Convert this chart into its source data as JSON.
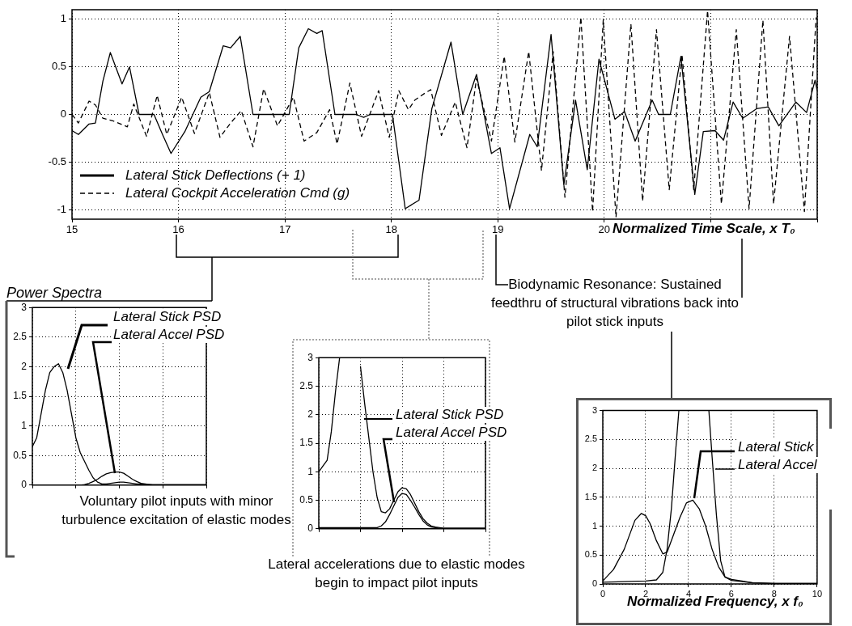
{
  "chart_data": [
    {
      "type": "line",
      "xlabel": "Normalized Time Scale, x T₀",
      "xlim": [
        15,
        22
      ],
      "xticks": [
        15,
        16,
        17,
        18,
        19,
        20,
        {
          "value": 21,
          "label": null
        },
        {
          "value": 22,
          "label": null
        }
      ],
      "ylim": [
        -1.1,
        1.1
      ],
      "yticks": [
        -1,
        -0.5,
        0,
        0.5,
        1
      ],
      "grid": true,
      "legend": "bottom left",
      "annotations": [
        "Biodynamic Resonance:  Sustained feedthru of structural vibrations back into pilot stick inputs"
      ],
      "series": [
        {
          "name": "Lateral Stick Deflections  (+ 1)",
          "color": "#000000",
          "line_style": "solid",
          "x": [
            15,
            15.06,
            15.16,
            15.22,
            15.29,
            15.36,
            15.47,
            15.54,
            15.63,
            15.77,
            15.85,
            15.93,
            16.06,
            16.21,
            16.29,
            16.42,
            16.49,
            16.58,
            16.7,
            17.04,
            17.13,
            17.22,
            17.3,
            17.35,
            17.47,
            17.67,
            17.74,
            17.8,
            18.01,
            18.13,
            18.26,
            18.38,
            18.56,
            18.67,
            18.8,
            18.94,
            19.02,
            19.11,
            19.3,
            19.37,
            19.5,
            19.62,
            19.73,
            19.84,
            19.95,
            20.1,
            20.19,
            20.29,
            20.45,
            20.51,
            20.62,
            20.72,
            20.85,
            20.93,
            21.04,
            21.12,
            21.21,
            21.3,
            21.43,
            21.54,
            21.64,
            21.8,
            21.9,
            21.98,
            22
          ],
          "values": [
            -0.17,
            -0.21,
            -0.1,
            -0.09,
            0.35,
            0.65,
            0.32,
            0.5,
            0,
            0,
            -0.21,
            -0.41,
            -0.18,
            0.18,
            0.24,
            0.72,
            0.7,
            0.82,
            0,
            0,
            0.7,
            0.9,
            0.85,
            0.88,
            0,
            0,
            -0.03,
            0,
            0,
            -0.99,
            -0.9,
            0.06,
            0.76,
            0,
            0.42,
            -0.41,
            -0.35,
            -0.99,
            -0.21,
            -0.34,
            0.84,
            -0.74,
            0.15,
            -0.58,
            0.58,
            -0.05,
            0.03,
            -0.28,
            0.15,
            0,
            0,
            0.61,
            -0.84,
            -0.18,
            -0.17,
            -0.27,
            0.13,
            -0.04,
            0.06,
            0.08,
            -0.12,
            0.13,
            0.02,
            0.36,
            0.25
          ]
        },
        {
          "name": "Lateral Cockpit Acceleration Cmd (g)",
          "color": "#000000",
          "line_style": "dashed",
          "x": [
            15,
            15.06,
            15.16,
            15.22,
            15.29,
            15.39,
            15.52,
            15.58,
            15.7,
            15.8,
            15.89,
            16.03,
            16.15,
            16.29,
            16.39,
            16.49,
            16.59,
            16.7,
            16.8,
            16.93,
            17.08,
            17.18,
            17.3,
            17.42,
            17.49,
            17.61,
            17.72,
            17.88,
            17.98,
            18.07,
            18.16,
            18.22,
            18.31,
            18.37,
            18.47,
            18.6,
            18.71,
            18.8,
            18.94,
            19.06,
            19.16,
            19.29,
            19.41,
            19.52,
            19.63,
            19.78,
            19.89,
            19.99,
            20.11,
            20.25,
            20.36,
            20.49,
            20.61,
            20.73,
            20.84,
            20.97,
            21.1,
            21.24,
            21.36,
            21.49,
            21.59,
            21.74,
            21.88,
            21.99
          ],
          "values": [
            0,
            -0.09,
            0.14,
            0.1,
            -0.04,
            -0.07,
            -0.13,
            0.11,
            -0.23,
            0.2,
            -0.21,
            0.18,
            -0.2,
            0.23,
            -0.24,
            -0.09,
            0.04,
            -0.34,
            0.27,
            -0.12,
            0.18,
            -0.28,
            -0.19,
            0.05,
            -0.31,
            0.33,
            -0.23,
            0.25,
            -0.24,
            0.25,
            0.05,
            0.15,
            0.22,
            0.26,
            -0.22,
            0.13,
            -0.35,
            0.38,
            -0.28,
            0.61,
            -0.29,
            0.66,
            -0.59,
            0.66,
            -0.87,
            1.02,
            -1.02,
            0.99,
            -1.08,
            0.95,
            -0.91,
            0.89,
            -0.79,
            0.63,
            -0.79,
            1.09,
            -0.94,
            0.89,
            -0.99,
            0.99,
            -0.94,
            0.82,
            -1.02,
            1.02
          ]
        }
      ]
    },
    {
      "type": "line",
      "title": "Power Spectra",
      "categories": [
        null,
        null,
        null,
        null,
        null,
        null,
        null,
        null,
        null,
        null,
        null,
        null,
        null,
        null,
        null,
        null,
        null,
        null,
        null,
        null,
        null,
        null,
        null,
        null,
        null,
        null,
        null,
        null,
        null,
        null,
        null,
        null,
        null,
        null,
        null,
        null,
        null,
        null,
        null,
        null,
        null
      ],
      "ylim": [
        0,
        3
      ],
      "yticks": [
        0,
        0.5,
        1,
        1.5,
        2,
        2.5,
        3
      ],
      "grid": true,
      "tick_labels": "y",
      "annotations": [
        "Voluntary pilot inputs with minor turbulence excitation of elastic modes"
      ],
      "series": [
        {
          "name": "Lateral Stick PSD",
          "color": "#000000",
          "values": [
            0.65,
            0.8,
            1.2,
            1.6,
            1.9,
            2.0,
            2.05,
            1.9,
            1.6,
            1.2,
            0.8,
            0.55,
            0.4,
            0.25,
            0.12,
            0.05,
            0.02,
            0.02,
            0.03,
            0.04,
            0.05,
            0.05,
            0.04,
            0.03,
            0.02,
            0.02,
            0.01,
            0.01,
            0.01,
            0.01,
            0.01,
            0.01,
            0.01,
            0.01,
            0.01,
            0.01,
            0.01,
            0.01,
            0.01,
            0.01,
            0.01
          ]
        },
        {
          "name": "Lateral Accel PSD",
          "color": "#000000",
          "values": [
            0,
            0,
            0,
            0,
            0,
            0,
            0,
            0,
            0,
            0,
            0,
            0,
            0.01,
            0.03,
            0.06,
            0.1,
            0.15,
            0.19,
            0.21,
            0.22,
            0.22,
            0.2,
            0.15,
            0.1,
            0.06,
            0.03,
            0.02,
            0.01,
            0,
            0,
            0,
            0,
            0,
            0,
            0,
            0,
            0,
            0,
            0,
            0,
            0
          ]
        }
      ]
    },
    {
      "type": "line",
      "categories": [
        null,
        null,
        null,
        null,
        null,
        null,
        null,
        null,
        null,
        null,
        null,
        null,
        null,
        null,
        null,
        null,
        null,
        null,
        null,
        null,
        null,
        null,
        null,
        null,
        null,
        null,
        null,
        null,
        null,
        null,
        null,
        null,
        null,
        null,
        null,
        null,
        null,
        null,
        null,
        null,
        null
      ],
      "ylim": [
        0,
        3
      ],
      "yticks": [
        0,
        0.5,
        1,
        1.5,
        2,
        2.5,
        3
      ],
      "grid": true,
      "tick_labels": "y",
      "annotations": [
        "Lateral accelerations due to elastic modes begin to impact pilot inputs"
      ],
      "series": [
        {
          "name": "Lateral Stick PSD",
          "color": "#000000",
          "values": [
            1.0,
            1.1,
            1.2,
            1.7,
            2.4,
            3.0,
            null,
            null,
            null,
            null,
            2.85,
            2.2,
            1.6,
            1.0,
            0.55,
            0.3,
            0.28,
            0.35,
            0.5,
            0.65,
            0.72,
            0.7,
            0.6,
            0.45,
            0.3,
            0.18,
            0.1,
            0.05,
            0.03,
            0.02,
            0.01,
            0.01,
            0.01,
            0.01,
            0.01,
            0.01,
            0.01,
            0.01,
            0.01,
            0.01,
            0.01
          ]
        },
        {
          "name": "Lateral Accel PSD",
          "color": "#000000",
          "values": [
            0.02,
            0.02,
            0.02,
            0.02,
            0.02,
            0.02,
            0.02,
            0.02,
            0.02,
            0.02,
            0.02,
            0.02,
            0.02,
            0.02,
            0.02,
            0.05,
            0.12,
            0.25,
            0.4,
            0.55,
            0.62,
            0.6,
            0.5,
            0.38,
            0.25,
            0.14,
            0.07,
            0.03,
            0.02,
            0.01,
            0.01,
            0.01,
            0.01,
            0.01,
            0.01,
            0.01,
            0.01,
            0.01,
            0.01,
            0.01,
            0.01
          ]
        }
      ]
    },
    {
      "type": "line",
      "xlabel": "Normalized Frequency, x f₀",
      "xlim": [
        0,
        10
      ],
      "xticks": [
        0,
        2,
        4,
        6,
        8,
        10
      ],
      "ylim": [
        0,
        3
      ],
      "yticks": [
        0,
        0.5,
        1,
        1.5,
        2,
        2.5,
        3
      ],
      "grid": true,
      "series": [
        {
          "name": "Lateral Stick",
          "color": "#000000",
          "x": [
            0,
            0.5,
            1,
            1.5,
            1.8,
            2,
            2.2,
            2.5,
            2.8,
            3,
            3.3,
            3.6,
            3.9,
            4.2,
            4.5,
            4.8,
            5.1,
            5.4,
            5.7,
            6,
            6.5,
            7,
            8,
            10
          ],
          "values": [
            0.05,
            0.25,
            0.6,
            1.1,
            1.22,
            1.18,
            1.05,
            0.75,
            0.52,
            0.55,
            0.85,
            1.15,
            1.4,
            1.45,
            1.3,
            1.0,
            0.6,
            0.3,
            0.12,
            0.06,
            0.04,
            0.02,
            0.01,
            0.01
          ]
        },
        {
          "name": "Lateral Accel",
          "color": "#000000",
          "x": [
            0,
            1,
            2,
            2.5,
            2.8,
            3,
            3.2,
            3.4,
            3.55,
            3.8,
            4.95,
            5.1,
            5.3,
            5.5,
            5.7,
            6,
            6.5,
            7,
            8,
            10
          ],
          "values": [
            0.03,
            0.04,
            0.05,
            0.07,
            0.2,
            0.6,
            1.3,
            2.3,
            3,
            null,
            3,
            2.2,
            1.2,
            0.4,
            0.12,
            0.08,
            0.05,
            0.02,
            0.01,
            0.01
          ]
        }
      ]
    }
  ]
}
